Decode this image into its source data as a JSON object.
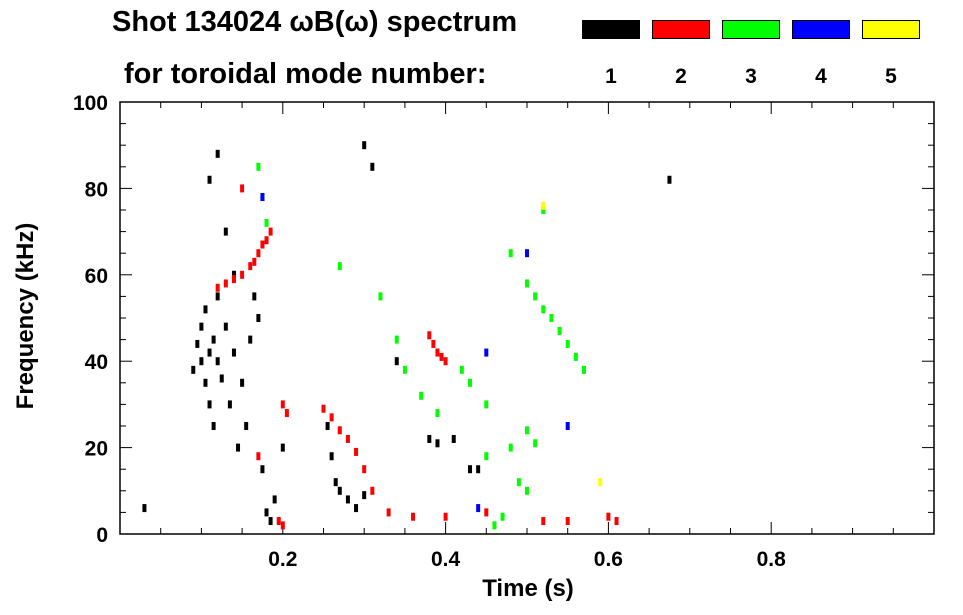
{
  "chart_data": {
    "type": "scatter",
    "title": "Shot 134024 ωB(ω) spectrum",
    "subtitle": "for toroidal mode number:",
    "xlabel": "Time (s)",
    "ylabel": "Frequency (kHz)",
    "xlim": [
      0.0,
      1.0
    ],
    "ylim": [
      0,
      100
    ],
    "x_ticks": [
      0.2,
      0.4,
      0.6,
      0.8
    ],
    "x_tick_labels": [
      "0.2",
      "0.4",
      "0.6",
      "0.8"
    ],
    "y_ticks": [
      0,
      20,
      40,
      60,
      80,
      100
    ],
    "y_tick_labels": [
      "0",
      "20",
      "40",
      "60",
      "80",
      "100"
    ],
    "legend_placement": "top-right",
    "grid": false,
    "series": [
      {
        "name": "1",
        "color": "#000000",
        "points": [
          [
            0.03,
            6
          ],
          [
            0.09,
            38
          ],
          [
            0.095,
            44
          ],
          [
            0.1,
            40
          ],
          [
            0.1,
            48
          ],
          [
            0.105,
            35
          ],
          [
            0.105,
            52
          ],
          [
            0.11,
            42
          ],
          [
            0.11,
            30
          ],
          [
            0.115,
            45
          ],
          [
            0.115,
            25
          ],
          [
            0.12,
            40
          ],
          [
            0.125,
            36
          ],
          [
            0.12,
            55
          ],
          [
            0.13,
            48
          ],
          [
            0.135,
            30
          ],
          [
            0.14,
            42
          ],
          [
            0.145,
            20
          ],
          [
            0.14,
            60
          ],
          [
            0.15,
            35
          ],
          [
            0.155,
            25
          ],
          [
            0.16,
            45
          ],
          [
            0.165,
            55
          ],
          [
            0.17,
            50
          ],
          [
            0.175,
            15
          ],
          [
            0.18,
            5
          ],
          [
            0.185,
            3
          ],
          [
            0.19,
            8
          ],
          [
            0.11,
            82
          ],
          [
            0.12,
            88
          ],
          [
            0.13,
            70
          ],
          [
            0.255,
            25
          ],
          [
            0.26,
            18
          ],
          [
            0.265,
            12
          ],
          [
            0.27,
            10
          ],
          [
            0.28,
            8
          ],
          [
            0.29,
            6
          ],
          [
            0.3,
            9
          ],
          [
            0.34,
            40
          ],
          [
            0.38,
            22
          ],
          [
            0.39,
            21
          ],
          [
            0.41,
            22
          ],
          [
            0.43,
            15
          ],
          [
            0.44,
            15
          ],
          [
            0.2,
            20
          ],
          [
            0.3,
            90
          ],
          [
            0.31,
            85
          ],
          [
            0.675,
            82
          ]
        ]
      },
      {
        "name": "2",
        "color": "#ff0000",
        "points": [
          [
            0.12,
            57
          ],
          [
            0.13,
            58
          ],
          [
            0.14,
            59
          ],
          [
            0.15,
            60
          ],
          [
            0.16,
            62
          ],
          [
            0.165,
            63
          ],
          [
            0.17,
            65
          ],
          [
            0.175,
            67
          ],
          [
            0.18,
            68
          ],
          [
            0.185,
            70
          ],
          [
            0.15,
            80
          ],
          [
            0.17,
            18
          ],
          [
            0.195,
            3
          ],
          [
            0.2,
            2
          ],
          [
            0.25,
            29
          ],
          [
            0.26,
            27
          ],
          [
            0.27,
            24
          ],
          [
            0.28,
            22
          ],
          [
            0.29,
            19
          ],
          [
            0.3,
            15
          ],
          [
            0.31,
            10
          ],
          [
            0.38,
            46
          ],
          [
            0.385,
            44
          ],
          [
            0.39,
            42
          ],
          [
            0.395,
            41
          ],
          [
            0.4,
            40
          ],
          [
            0.33,
            5
          ],
          [
            0.36,
            4
          ],
          [
            0.4,
            4
          ],
          [
            0.45,
            5
          ],
          [
            0.52,
            3
          ],
          [
            0.55,
            3
          ],
          [
            0.6,
            4
          ],
          [
            0.2,
            30
          ],
          [
            0.205,
            28
          ],
          [
            0.61,
            3
          ]
        ]
      },
      {
        "name": "3",
        "color": "#00ff00",
        "points": [
          [
            0.17,
            85
          ],
          [
            0.175,
            78
          ],
          [
            0.18,
            72
          ],
          [
            0.27,
            62
          ],
          [
            0.32,
            55
          ],
          [
            0.34,
            45
          ],
          [
            0.35,
            38
          ],
          [
            0.37,
            32
          ],
          [
            0.39,
            28
          ],
          [
            0.42,
            38
          ],
          [
            0.43,
            35
          ],
          [
            0.45,
            30
          ],
          [
            0.48,
            20
          ],
          [
            0.5,
            58
          ],
          [
            0.51,
            55
          ],
          [
            0.52,
            52
          ],
          [
            0.53,
            50
          ],
          [
            0.54,
            47
          ],
          [
            0.55,
            44
          ],
          [
            0.56,
            41
          ],
          [
            0.57,
            38
          ],
          [
            0.48,
            65
          ],
          [
            0.5,
            24
          ],
          [
            0.51,
            21
          ],
          [
            0.49,
            12
          ],
          [
            0.5,
            10
          ],
          [
            0.47,
            4
          ],
          [
            0.45,
            18
          ],
          [
            0.52,
            75
          ],
          [
            0.46,
            2
          ]
        ]
      },
      {
        "name": "4",
        "color": "#0000ff",
        "points": [
          [
            0.175,
            78
          ],
          [
            0.5,
            65
          ],
          [
            0.45,
            42
          ],
          [
            0.44,
            6
          ],
          [
            0.55,
            25
          ]
        ]
      },
      {
        "name": "5",
        "color": "#ffff00",
        "points": [
          [
            0.59,
            12
          ],
          [
            0.52,
            76
          ]
        ]
      }
    ]
  }
}
